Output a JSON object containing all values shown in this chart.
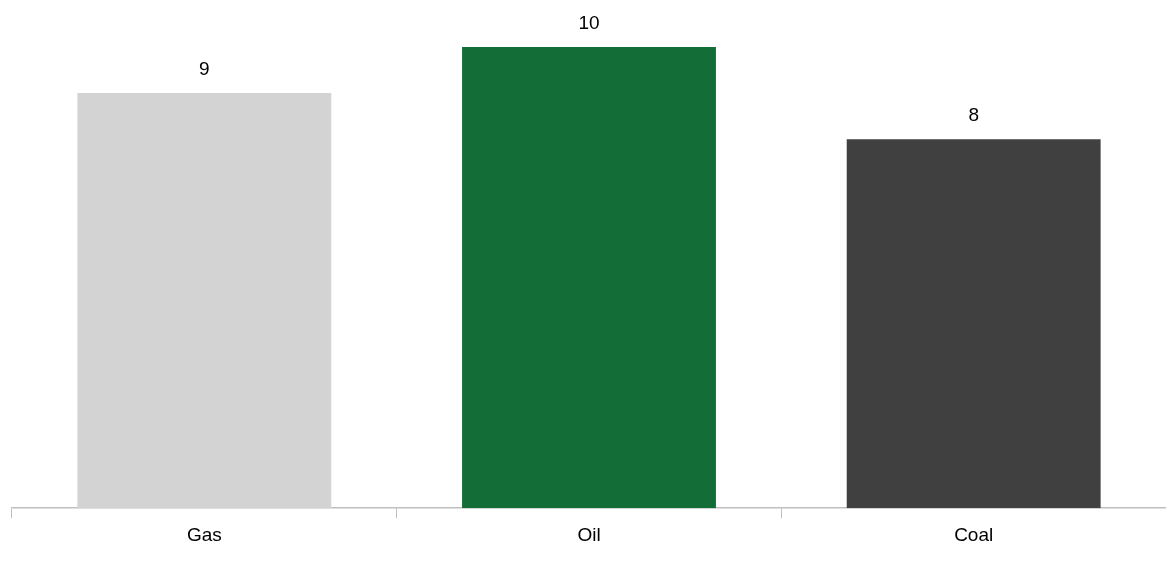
{
  "chart_data": {
    "type": "bar",
    "categories": [
      "Gas",
      "Oil",
      "Coal"
    ],
    "values": [
      9,
      10,
      8
    ],
    "colors": [
      "#d3d3d3",
      "#126e36",
      "#404040"
    ],
    "data_labels": true,
    "grid": false,
    "legend": false
  }
}
